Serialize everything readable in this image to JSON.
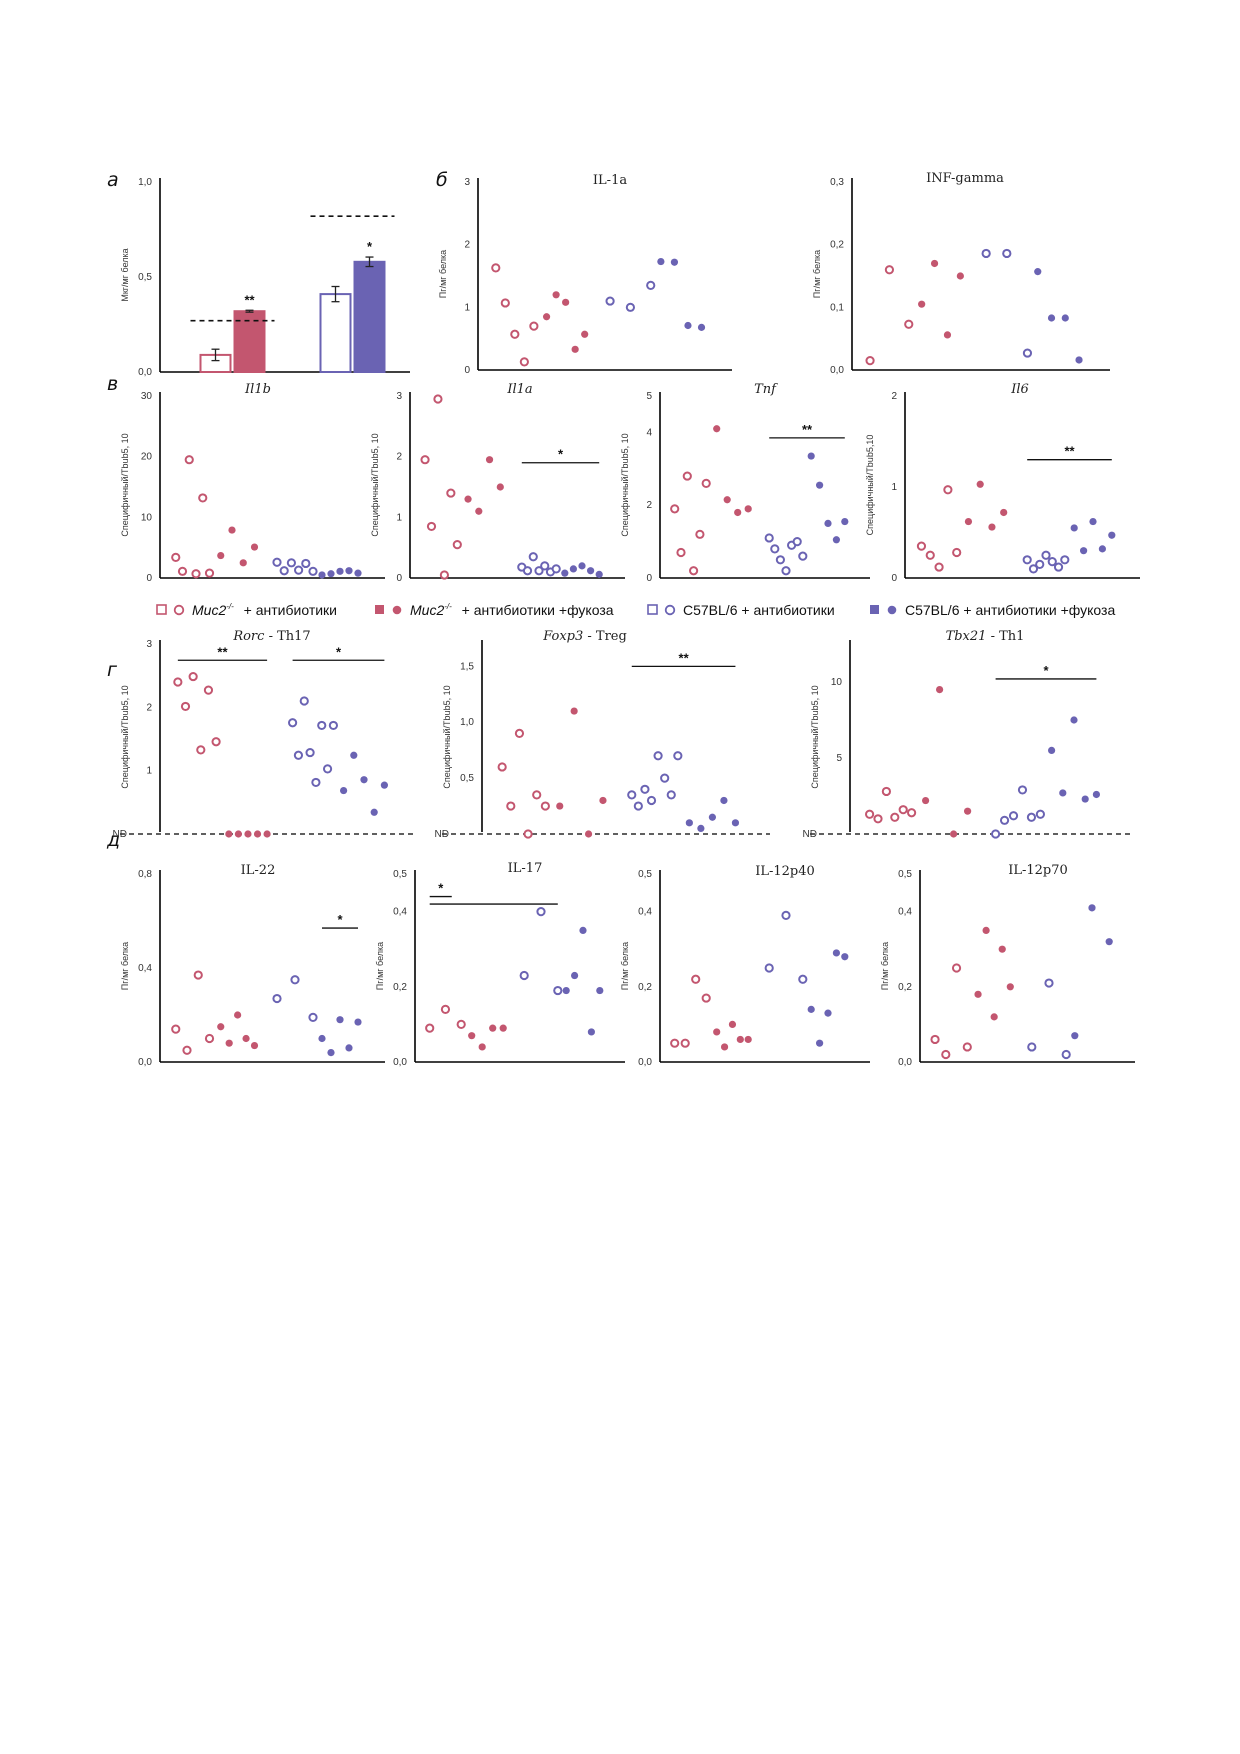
{
  "colors": {
    "muc2": "#c3566f",
    "c57": "#6a63b3",
    "axis": "#000000"
  },
  "panel_letters": [
    "а",
    "б",
    "в",
    "г",
    "д"
  ],
  "legend": {
    "items": [
      {
        "label": "Muc2-/-",
        "superscript": "-/-",
        "base": "Muc2",
        "suffix": " + антибиотики",
        "color": "#c3566f",
        "filled": false
      },
      {
        "label": "Muc2-/-",
        "base": "Muc2",
        "superscript": "-/-",
        "suffix": " + антибиотики +фукоза",
        "color": "#c3566f",
        "filled": true
      },
      {
        "label": "C57BL/6 + антибиотики",
        "base": "C57BL/6",
        "superscript": "",
        "suffix": " + антибиотики",
        "color": "#6a63b3",
        "filled": false
      },
      {
        "label": "C57BL/6 + антибиотики +фукоза",
        "base": "C57BL/6",
        "superscript": "",
        "suffix": " + антибиотики +фукоза",
        "color": "#6a63b3",
        "filled": true
      }
    ]
  },
  "chart_data": [
    {
      "id": "a",
      "type": "bar",
      "ylabel": "Мкг/мг белка",
      "yticks": [
        "0,0",
        "0,5",
        "1,0"
      ],
      "ylim": [
        0,
        1.0
      ],
      "groups": [
        {
          "values": [
            0.09,
            0.32
          ],
          "errors": [
            0.03,
            0.005
          ],
          "colors": [
            "#c3566f",
            "#c3566f"
          ],
          "filled": [
            false,
            true
          ],
          "dashed": 0.27,
          "star": "**",
          "star_bar": 1
        },
        {
          "values": [
            0.41,
            0.58
          ],
          "errors": [
            0.04,
            0.025
          ],
          "colors": [
            "#6a63b3",
            "#6a63b3"
          ],
          "filled": [
            false,
            true
          ],
          "dashed": 0.82,
          "star": "*",
          "star_bar": 1
        }
      ]
    },
    {
      "id": "b1",
      "type": "scatter",
      "title": "IL-1a",
      "ylabel": "Пг/мг белка",
      "yticks": [
        "0",
        "1",
        "2",
        "3"
      ],
      "ylim": [
        0,
        3
      ],
      "groups": [
        {
          "values": [
            1.63,
            1.07,
            0.57,
            0.13,
            0.7
          ]
        },
        {
          "values": [
            0.85,
            1.2,
            1.08,
            0.33,
            0.57
          ]
        },
        {
          "values": [
            1.1,
            1.0,
            1.35
          ]
        },
        {
          "values": [
            1.73,
            1.72,
            0.71,
            0.68
          ]
        }
      ]
    },
    {
      "id": "b2",
      "type": "scatter",
      "title": "INF-gamma",
      "ylabel": "Пг/мг белка",
      "yticks": [
        "0,0",
        "0,1",
        "0,2",
        "0,3"
      ],
      "ylim": [
        0,
        0.3
      ],
      "groups": [
        {
          "values": [
            0.015,
            0.16,
            0.073
          ]
        },
        {
          "values": [
            0.105,
            0.17,
            0.056,
            0.15
          ]
        },
        {
          "values": [
            0.186,
            0.186,
            0.027
          ]
        },
        {
          "values": [
            0.157,
            0.083,
            0.083,
            0.016
          ]
        }
      ]
    },
    {
      "id": "v1",
      "type": "scatter",
      "title": "Il1b",
      "ylabel": "Специфичный/Tbub5, 10",
      "yticks": [
        "0",
        "10",
        "20",
        "30"
      ],
      "ylim": [
        0,
        30
      ],
      "groups": [
        {
          "values": [
            3.4,
            1.1,
            19.5,
            0.7,
            13.2,
            0.8
          ]
        },
        {
          "values": [
            3.7,
            7.9,
            2.5,
            5.1
          ]
        },
        {
          "values": [
            2.6,
            1.2,
            2.5,
            1.3,
            2.4,
            1.1
          ]
        },
        {
          "values": [
            0.5,
            0.7,
            1.1,
            1.2,
            0.8
          ]
        }
      ]
    },
    {
      "id": "v2",
      "type": "scatter",
      "title": "Il1a",
      "ylabel": "Специфичный/Tbub5, 10",
      "yticks": [
        "0",
        "1",
        "2",
        "3"
      ],
      "ylim": [
        0,
        3
      ],
      "groups": [
        {
          "values": [
            1.95,
            0.85,
            2.95,
            0.05,
            1.4,
            0.55
          ]
        },
        {
          "values": [
            1.3,
            1.1,
            1.95,
            1.5
          ]
        },
        {
          "values": [
            0.18,
            0.12,
            0.35,
            0.12,
            0.2,
            0.1,
            0.15
          ]
        },
        {
          "values": [
            0.08,
            0.15,
            0.2,
            0.12,
            0.06
          ]
        }
      ],
      "sig": [
        {
          "label": "*",
          "from": 2,
          "to": 3,
          "y": 1.9
        }
      ]
    },
    {
      "id": "v3",
      "type": "scatter",
      "title": "Tnf",
      "ylabel": "Специфичный/Tbub5, 10",
      "yticks": [
        "0",
        "2",
        "4",
        "5"
      ],
      "ytick_values": [
        0,
        2,
        4,
        5
      ],
      "ylim": [
        0,
        5
      ],
      "groups": [
        {
          "values": [
            1.9,
            0.7,
            2.8,
            0.2,
            1.2,
            2.6
          ]
        },
        {
          "values": [
            4.1,
            2.15,
            1.8,
            1.9
          ]
        },
        {
          "values": [
            1.1,
            0.8,
            0.5,
            0.2,
            0.9,
            1.0,
            0.6
          ]
        },
        {
          "values": [
            3.35,
            2.55,
            1.5,
            1.05,
            1.55
          ]
        }
      ],
      "sig": [
        {
          "label": "**",
          "from": 2,
          "to": 3,
          "y": 3.85
        }
      ]
    },
    {
      "id": "v4",
      "type": "scatter",
      "title": "Il6",
      "ylabel": "Специфичный/Tbub5,10",
      "yticks": [
        "0",
        "1",
        "2"
      ],
      "ylim": [
        0,
        2
      ],
      "groups": [
        {
          "values": [
            0.35,
            0.25,
            0.12,
            0.97,
            0.28
          ]
        },
        {
          "values": [
            0.62,
            1.03,
            0.56,
            0.72
          ]
        },
        {
          "values": [
            0.2,
            0.1,
            0.15,
            0.25,
            0.18,
            0.12,
            0.2
          ]
        },
        {
          "values": [
            0.55,
            0.3,
            0.62,
            0.32,
            0.47
          ]
        }
      ],
      "sig": [
        {
          "label": "**",
          "from": 2,
          "to": 3,
          "y": 1.3
        }
      ]
    },
    {
      "id": "g1",
      "type": "scatter",
      "title": "Rorc",
      "title_suffix": " - Th17",
      "ylabel": "Специфичный/Tbub5, 10",
      "yticks": [
        "ND",
        "1",
        "2",
        "3"
      ],
      "ylim": [
        0,
        3.5
      ],
      "nd": true,
      "groups": [
        {
          "values": [
            2.8,
            2.35,
            2.9,
            1.55,
            2.65,
            1.7
          ]
        },
        {
          "values": [
            0,
            0,
            0,
            0,
            0
          ]
        },
        {
          "values": [
            2.05,
            1.45,
            2.45,
            1.5,
            0.95,
            2.0,
            1.2,
            2.0
          ]
        },
        {
          "values": [
            0.8,
            1.45,
            1.0,
            0.4,
            0.9
          ]
        }
      ],
      "sig": [
        {
          "label": "**",
          "from": 0,
          "to": 1,
          "y": 3.2
        },
        {
          "label": "*",
          "from": 2,
          "to": 3,
          "y": 3.2
        }
      ]
    },
    {
      "id": "g2",
      "type": "scatter",
      "title": "Foxp3",
      "title_suffix": " - Treg",
      "ylabel": "Специфичный/Tbub5, 10",
      "yticks": [
        "ND",
        "0,5",
        "1,0",
        "1,5"
      ],
      "ytick_values": [
        0,
        0.5,
        1.0,
        1.5
      ],
      "ylim": [
        0,
        1.7
      ],
      "nd": true,
      "groups": [
        {
          "values": [
            0.6,
            0.25,
            0.9,
            0,
            0.35,
            0.25
          ]
        },
        {
          "values": [
            0.25,
            1.1,
            0,
            0.3
          ]
        },
        {
          "values": [
            0.35,
            0.25,
            0.4,
            0.3,
            0.7,
            0.5,
            0.35,
            0.7
          ]
        },
        {
          "values": [
            0.1,
            0.05,
            0.15,
            0.3,
            0.1
          ]
        }
      ],
      "sig": [
        {
          "label": "**",
          "from": 2,
          "to": 3,
          "y": 1.5
        }
      ]
    },
    {
      "id": "g3",
      "type": "scatter",
      "title": "Tbx21",
      "title_suffix": " - Th1",
      "ylabel": "Специфичный/Tbub5, 10",
      "yticks": [
        "ND",
        "5",
        "10"
      ],
      "ytick_values": [
        0,
        5,
        10
      ],
      "ylim": [
        0,
        12.5
      ],
      "nd": true,
      "groups": [
        {
          "values": [
            1.3,
            1.0,
            2.8,
            1.1,
            1.6,
            1.4
          ]
        },
        {
          "values": [
            2.2,
            9.5,
            0,
            1.5
          ]
        },
        {
          "values": [
            0,
            0.9,
            1.2,
            2.9,
            1.1,
            1.3
          ]
        },
        {
          "values": [
            5.5,
            2.7,
            7.5,
            2.3,
            2.6
          ]
        }
      ],
      "sig": [
        {
          "label": "*",
          "from": 2,
          "to": 3,
          "y": 10.2
        }
      ]
    },
    {
      "id": "d1",
      "type": "scatter",
      "title": "IL-22",
      "ylabel": "Пг/мг белка",
      "yticks": [
        "0,0",
        "0,4",
        "0,8"
      ],
      "ytick_values": [
        0,
        0.4,
        0.8
      ],
      "ylim": [
        0,
        0.8
      ],
      "groups": [
        {
          "values": [
            0.14,
            0.05,
            0.37,
            0.1
          ]
        },
        {
          "values": [
            0.15,
            0.08,
            0.2,
            0.1,
            0.07
          ]
        },
        {
          "values": [
            0.27,
            0.35,
            0.19
          ]
        },
        {
          "values": [
            0.1,
            0.04,
            0.18,
            0.06,
            0.17
          ]
        }
      ],
      "sig": [
        {
          "label": "*",
          "from": 3,
          "to": 3,
          "y": 0.57
        }
      ]
    },
    {
      "id": "d2",
      "type": "scatter",
      "title": "IL-17",
      "ylabel": "Пг/мг белка",
      "yticks": [
        "0,0",
        "0,2",
        "0,4",
        "0,5"
      ],
      "ytick_values": [
        0,
        0.2,
        0.4,
        0.5
      ],
      "ylim": [
        0,
        0.5
      ],
      "groups": [
        {
          "values": [
            0.09,
            0.14,
            0.1
          ]
        },
        {
          "values": [
            0.07,
            0.04,
            0.09,
            0.09
          ]
        },
        {
          "values": [
            0.23,
            0.4,
            0.19
          ]
        },
        {
          "values": [
            0.19,
            0.23,
            0.35,
            0.08,
            0.19
          ]
        }
      ],
      "sig": [
        {
          "label": "*",
          "from": 0,
          "to": 1,
          "y": 0.44,
          "short": true
        },
        {
          "label": "",
          "from": 0,
          "to": 2,
          "y": 0.42
        }
      ]
    },
    {
      "id": "d3",
      "type": "scatter",
      "title": "IL-12p40",
      "ylabel": "Пг/мг белка",
      "yticks": [
        "0,0",
        "0,2",
        "0,4",
        "0,5"
      ],
      "ytick_values": [
        0,
        0.2,
        0.4,
        0.5
      ],
      "ylim": [
        0,
        0.5
      ],
      "groups": [
        {
          "values": [
            0.05,
            0.05,
            0.22,
            0.17
          ]
        },
        {
          "values": [
            0.08,
            0.04,
            0.1,
            0.06,
            0.06
          ]
        },
        {
          "values": [
            0.25,
            0.39,
            0.22
          ]
        },
        {
          "values": [
            0.14,
            0.05,
            0.13,
            0.29,
            0.28
          ]
        }
      ]
    },
    {
      "id": "d4",
      "type": "scatter",
      "title": "IL-12p70",
      "ylabel": "Пг/мг белка",
      "yticks": [
        "0,0",
        "0,2",
        "0,4",
        "0,5"
      ],
      "ytick_values": [
        0,
        0.2,
        0.4,
        0.5
      ],
      "ylim": [
        0,
        0.5
      ],
      "groups": [
        {
          "values": [
            0.06,
            0.02,
            0.25,
            0.04
          ]
        },
        {
          "values": [
            0.18,
            0.35,
            0.12,
            0.3,
            0.2
          ]
        },
        {
          "values": [
            0.04,
            0.21,
            0.02
          ]
        },
        {
          "values": [
            0.07,
            0.41,
            0.32
          ]
        }
      ]
    }
  ]
}
